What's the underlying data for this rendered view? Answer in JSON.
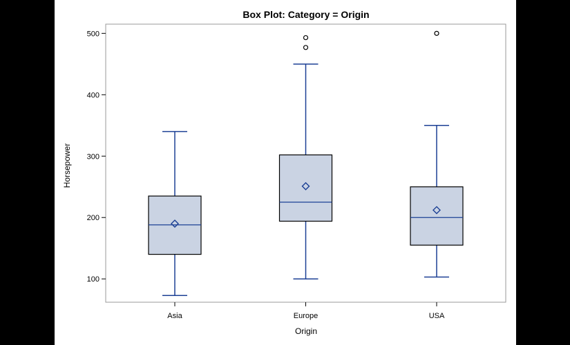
{
  "chart_data": {
    "type": "box",
    "title": "Box Plot: Category = Origin",
    "xlabel": "Origin",
    "ylabel": "Horsepower",
    "categories": [
      "Asia",
      "Europe",
      "USA"
    ],
    "yticks": [
      100,
      200,
      300,
      400,
      500
    ],
    "ylim": [
      62,
      515
    ],
    "grid": false,
    "boxes": [
      {
        "category": "Asia",
        "min": 73,
        "q1": 140,
        "median": 188,
        "q3": 235,
        "max": 340,
        "mean": 190,
        "outliers": []
      },
      {
        "category": "Europe",
        "min": 100,
        "q1": 194,
        "median": 225,
        "q3": 302,
        "max": 450,
        "mean": 251,
        "outliers": [
          477,
          493
        ]
      },
      {
        "category": "USA",
        "min": 103,
        "q1": 155,
        "median": 200,
        "q3": 250,
        "max": 350,
        "mean": 212,
        "outliers": [
          500
        ]
      }
    ],
    "colors": {
      "line": "#1b3f94",
      "box_fill": "#cad3e3",
      "box_edge": "#000000",
      "mean_marker": "#1b3f94"
    }
  }
}
